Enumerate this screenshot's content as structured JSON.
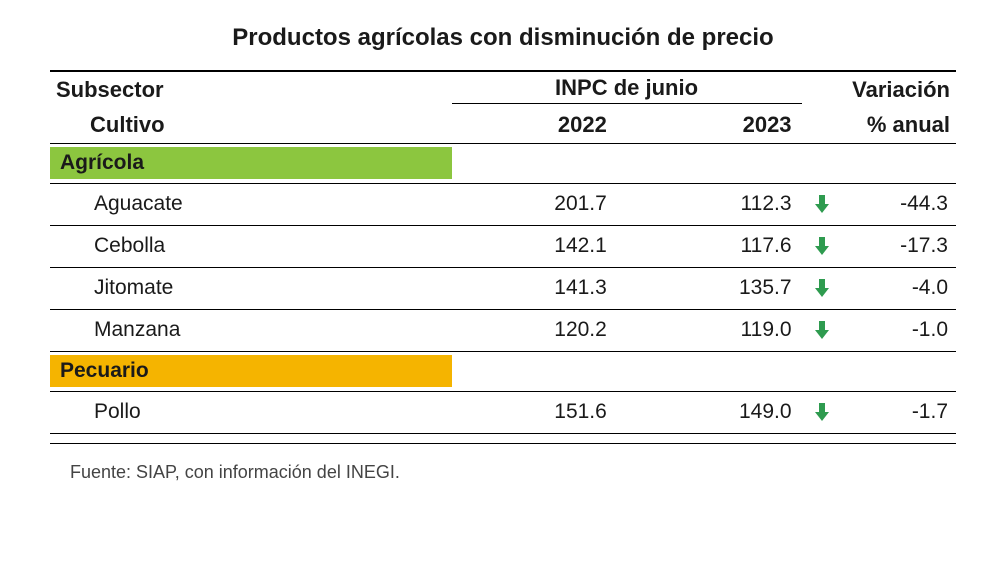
{
  "title": "Productos agrícolas con disminución de precio",
  "title_fontsize": 24,
  "headers": {
    "subsector": "Subsector",
    "cultivo": "Cultivo",
    "inpc": "INPC de junio",
    "y2022": "2022",
    "y2023": "2023",
    "variacion": "Variación",
    "pct_anual": "% anual"
  },
  "header_fontsize": 22,
  "body_fontsize": 21,
  "sections": [
    {
      "name": "Agrícola",
      "bg_color": "#8cc63f",
      "rows": [
        {
          "crop": "Aguacate",
          "y2022": "201.7",
          "y2023": "112.3",
          "var": "-44.3",
          "dir": "down"
        },
        {
          "crop": "Cebolla",
          "y2022": "142.1",
          "y2023": "117.6",
          "var": "-17.3",
          "dir": "down"
        },
        {
          "crop": "Jitomate",
          "y2022": "141.3",
          "y2023": "135.7",
          "var": "-4.0",
          "dir": "down"
        },
        {
          "crop": "Manzana",
          "y2022": "120.2",
          "y2023": "119.0",
          "var": "-1.0",
          "dir": "down"
        }
      ]
    },
    {
      "name": "Pecuario",
      "bg_color": "#f5b400",
      "rows": [
        {
          "crop": "Pollo",
          "y2022": "151.6",
          "y2023": "149.0",
          "var": "-1.7",
          "dir": "down"
        }
      ]
    }
  ],
  "arrow_color": "#2e9b4f",
  "text_color": "#1a1a1a",
  "background_color": "#ffffff",
  "footnote": "Fuente: SIAP, con información del INEGI.",
  "footnote_fontsize": 18
}
